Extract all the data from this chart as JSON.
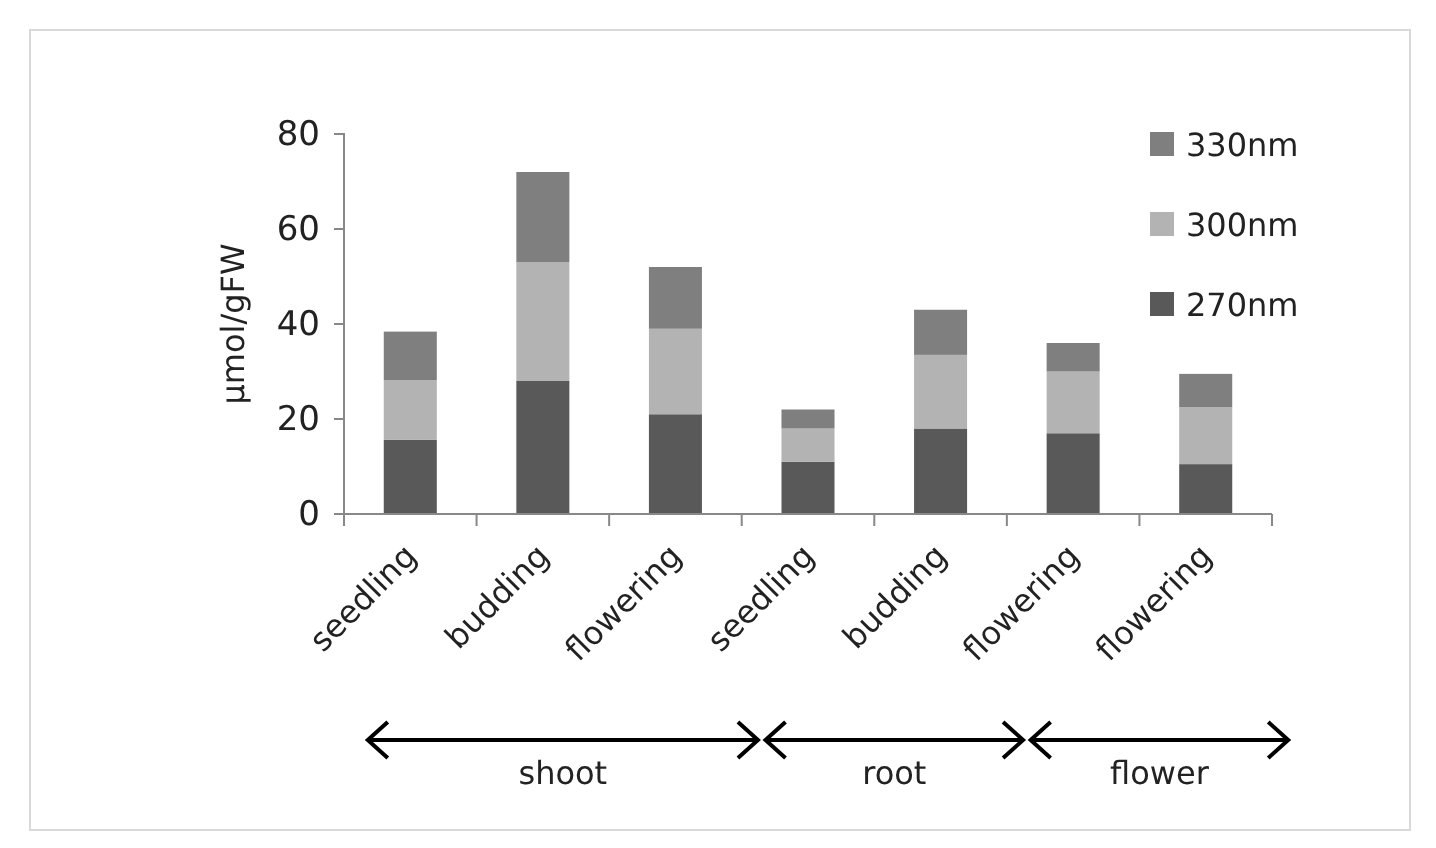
{
  "chart_data": {
    "type": "bar",
    "stacked": true,
    "ylabel": "µmol/gFW",
    "categories": [
      "seedling",
      "budding",
      "flowering",
      "seedling",
      "budding",
      "flowering",
      "flowering"
    ],
    "series": [
      {
        "name": "270nm",
        "color": "#595959",
        "values": [
          15.6,
          28,
          21,
          11,
          18,
          17,
          10.5
        ]
      },
      {
        "name": "300nm",
        "color": "#b3b3b3",
        "values": [
          12.6,
          25,
          18,
          7,
          15.5,
          13,
          12
        ]
      },
      {
        "name": "330nm",
        "color": "#7f7f7f",
        "values": [
          10.2,
          19,
          13,
          4,
          9.5,
          6,
          7
        ]
      }
    ],
    "ylim": [
      0,
      80
    ],
    "yticks": [
      0,
      20,
      40,
      60,
      80
    ],
    "grid": false,
    "legend": "top right",
    "annotations": [
      "shoot",
      "root",
      "flower"
    ]
  }
}
